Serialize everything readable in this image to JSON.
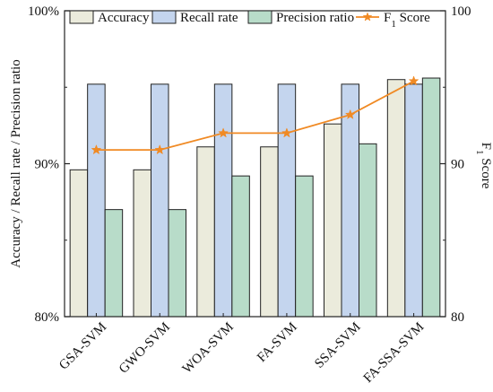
{
  "chart_data": {
    "type": "bar",
    "categories": [
      "GSA-SVM",
      "GWO-SVM",
      "WOA-SVM",
      "FA-SVM",
      "SSA-SVM",
      "FA-SSA-SVM"
    ],
    "series": [
      {
        "name": "Accuracy",
        "axis": "left",
        "values": [
          89.6,
          89.6,
          91.1,
          91.1,
          92.6,
          95.5
        ],
        "color": "#ebebdc"
      },
      {
        "name": "Recall rate",
        "axis": "left",
        "values": [
          95.2,
          95.2,
          95.2,
          95.2,
          95.2,
          95.2
        ],
        "color": "#c4d5ee"
      },
      {
        "name": "Precision ratio",
        "axis": "left",
        "values": [
          87.0,
          87.0,
          89.2,
          89.2,
          91.3,
          95.6
        ],
        "color": "#b8dcc9"
      },
      {
        "name": "F",
        "name_subscript": "1",
        "name_suffix": " Score",
        "axis": "right",
        "type": "line",
        "values": [
          90.9,
          90.9,
          92.0,
          92.0,
          93.2,
          95.4
        ],
        "color": "#f08a24",
        "marker": "star"
      }
    ],
    "left_axis": {
      "label": "Accuracy / Recall rate / Precision ratio",
      "ylim": [
        80,
        100
      ],
      "ticks": [
        {
          "value": 80,
          "label": "80%"
        },
        {
          "value": 90,
          "label": "90%"
        },
        {
          "value": 100,
          "label": "100%"
        }
      ]
    },
    "right_axis": {
      "label": "F",
      "label_subscript": "1",
      "label_suffix": " Score",
      "ylim": [
        80,
        100
      ],
      "ticks": [
        {
          "value": 80,
          "label": "80"
        },
        {
          "value": 90,
          "label": "90"
        },
        {
          "value": 100,
          "label": "100"
        }
      ]
    },
    "legend_position": "top",
    "grid": false,
    "edge_color": "#222222"
  }
}
